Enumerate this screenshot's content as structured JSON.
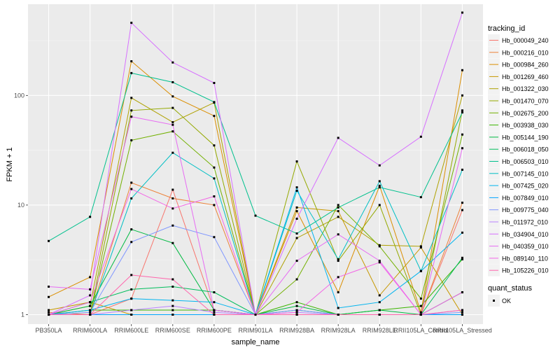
{
  "chart_data": {
    "type": "line",
    "xlabel": "sample_name",
    "ylabel": "FPKM + 1",
    "y_scale": "log10",
    "ylim": [
      0.82,
      680
    ],
    "y_ticks": [
      {
        "value": 1,
        "label": "1"
      },
      {
        "value": 10,
        "label": "10"
      },
      {
        "value": 100,
        "label": "100"
      }
    ],
    "categories": [
      "PB350LA",
      "RRIM600LA",
      "RRIM600LE",
      "RRIM600SE",
      "RRIM600PE",
      "RRIM901LA",
      "RRIM928BA",
      "RRIM928LA",
      "RRIM928LE",
      "RRII105LA_Control",
      "RRII105LA_Stressed"
    ],
    "grid": true,
    "legend": {
      "title": "tracking_id",
      "placement": "right",
      "shape_title": "quant_status",
      "shape_label": "OK"
    },
    "series": [
      {
        "name": "Hb_000049_240",
        "color": "#F8766D",
        "values": [
          1.0,
          1.0,
          1.4,
          13.8,
          1.1,
          1.0,
          1.0,
          1.0,
          1.0,
          1.0,
          9.0
        ]
      },
      {
        "name": "Hb_000216_010",
        "color": "#EC8239",
        "values": [
          1.05,
          1.0,
          16.0,
          11.5,
          10.0,
          1.0,
          1.0,
          1.0,
          1.0,
          1.0,
          10.5
        ]
      },
      {
        "name": "Hb_000984_260",
        "color": "#DB8E00",
        "values": [
          1.45,
          2.2,
          205.0,
          98.0,
          65.0,
          1.0,
          8.8,
          1.6,
          15.0,
          1.05,
          170.0
        ]
      },
      {
        "name": "Hb_001269_460",
        "color": "#C79800",
        "values": [
          1.1,
          1.3,
          1.0,
          1.0,
          1.0,
          1.0,
          9.5,
          8.8,
          1.5,
          4.1,
          1.0
        ]
      },
      {
        "name": "Hb_001322_030",
        "color": "#AFA100",
        "values": [
          1.0,
          1.2,
          95.0,
          57.0,
          86.0,
          1.0,
          5.0,
          7.8,
          4.3,
          4.2,
          100.0
        ]
      },
      {
        "name": "Hb_001470_070",
        "color": "#94A900",
        "values": [
          1.0,
          1.0,
          73.0,
          77.0,
          35.0,
          1.0,
          25.0,
          3.1,
          10.0,
          1.0,
          73.0
        ]
      },
      {
        "name": "Hb_002675_200",
        "color": "#72B000",
        "values": [
          1.0,
          1.0,
          39.0,
          47.0,
          22.0,
          1.0,
          2.1,
          10.0,
          4.2,
          1.4,
          44.0
        ]
      },
      {
        "name": "Hb_003938_030",
        "color": "#3BB500",
        "values": [
          1.0,
          1.1,
          1.1,
          1.1,
          1.1,
          1.0,
          1.3,
          1.0,
          1.1,
          1.2,
          3.2
        ]
      },
      {
        "name": "Hb_005144_190",
        "color": "#00BA42",
        "values": [
          1.0,
          1.2,
          6.0,
          4.5,
          1.1,
          1.0,
          1.2,
          1.0,
          1.1,
          1.0,
          1.6
        ]
      },
      {
        "name": "Hb_006018_050",
        "color": "#00BD5C",
        "values": [
          1.0,
          1.3,
          1.7,
          1.8,
          1.6,
          1.0,
          1.1,
          1.0,
          1.0,
          1.0,
          3.3
        ]
      },
      {
        "name": "Hb_006503_010",
        "color": "#00C08D",
        "values": [
          4.7,
          7.8,
          160.0,
          132.0,
          87.0,
          8.0,
          5.5,
          9.5,
          14.5,
          11.8,
          70.0
        ]
      },
      {
        "name": "Hb_007145_010",
        "color": "#00BFC4",
        "values": [
          1.0,
          1.0,
          11.5,
          30.0,
          17.5,
          1.0,
          13.5,
          3.2,
          16.5,
          2.5,
          21.0
        ]
      },
      {
        "name": "Hb_007425_020",
        "color": "#00B4EF",
        "values": [
          1.0,
          1.1,
          1.4,
          1.35,
          1.3,
          1.0,
          14.5,
          1.15,
          1.3,
          2.5,
          5.6
        ]
      },
      {
        "name": "Hb_007849_010",
        "color": "#00A5FF",
        "values": [
          1.0,
          1.0,
          1.0,
          1.0,
          1.0,
          1.0,
          1.0,
          1.0,
          1.0,
          1.0,
          1.0
        ]
      },
      {
        "name": "Hb_009775_040",
        "color": "#7F96FF",
        "values": [
          1.0,
          1.05,
          4.6,
          6.5,
          5.1,
          1.0,
          1.1,
          1.0,
          1.0,
          1.0,
          1.05
        ]
      },
      {
        "name": "Hb_011972_010",
        "color": "#B983FF",
        "values": [
          1.0,
          1.0,
          1.1,
          1.2,
          1.05,
          1.0,
          1.05,
          1.0,
          1.0,
          1.0,
          1.1
        ]
      },
      {
        "name": "Hb_034904_010",
        "color": "#D770FF",
        "values": [
          1.0,
          1.5,
          460.0,
          200.0,
          130.0,
          1.0,
          7.5,
          41.0,
          23.0,
          42.0,
          570.0
        ]
      },
      {
        "name": "Hb_040359_010",
        "color": "#E76BF3",
        "values": [
          1.8,
          1.7,
          64.0,
          54.0,
          1.1,
          1.0,
          3.1,
          5.4,
          3.1,
          1.0,
          33.0
        ]
      },
      {
        "name": "Hb_089140_110",
        "color": "#F365E6",
        "values": [
          1.0,
          1.3,
          14.0,
          9.3,
          12.0,
          1.0,
          1.05,
          2.2,
          3.0,
          1.0,
          1.6
        ]
      },
      {
        "name": "Hb_105226_010",
        "color": "#FF65AC",
        "values": [
          1.0,
          1.0,
          2.3,
          2.1,
          1.0,
          1.0,
          1.0,
          1.0,
          1.0,
          1.0,
          1.1
        ]
      }
    ]
  }
}
